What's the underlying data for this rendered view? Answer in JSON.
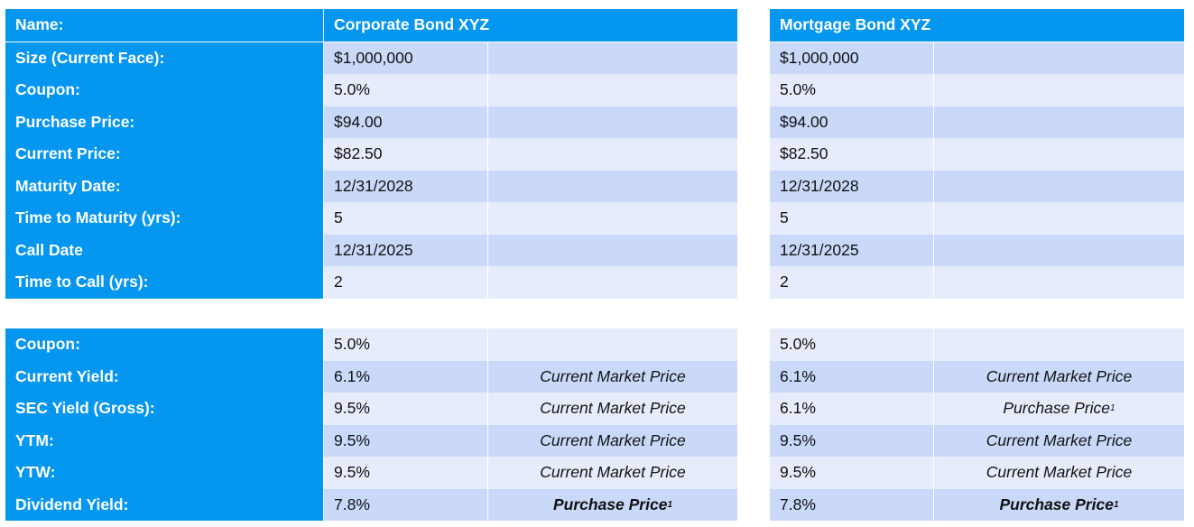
{
  "top_table": {
    "header": {
      "label": "Name:",
      "corporate": "Corporate Bond XYZ",
      "mortgage": "Mortgage Bond XYZ"
    },
    "rows": [
      {
        "label": "Size (Current Face):",
        "corporate": "$1,000,000",
        "mortgage": "$1,000,000"
      },
      {
        "label": "Coupon:",
        "corporate": "5.0%",
        "mortgage": "5.0%"
      },
      {
        "label": "Purchase Price:",
        "corporate": "$94.00",
        "mortgage": "$94.00"
      },
      {
        "label": "Current Price:",
        "corporate": "$82.50",
        "mortgage": "$82.50"
      },
      {
        "label": "Maturity Date:",
        "corporate": "12/31/2028",
        "mortgage": "12/31/2028"
      },
      {
        "label": "Time to Maturity (yrs):",
        "corporate": "5",
        "mortgage": "5"
      },
      {
        "label": "Call Date",
        "corporate": "12/31/2025",
        "mortgage": "12/31/2025"
      },
      {
        "label": "Time to Call (yrs):",
        "corporate": "2",
        "mortgage": "2"
      }
    ]
  },
  "bottom_table": {
    "footnote_marker": "1",
    "rows": [
      {
        "label": "Coupon:",
        "corporate": "5.0%",
        "corporate_basis": "",
        "mortgage": "5.0%",
        "mortgage_basis": ""
      },
      {
        "label": "Current Yield:",
        "corporate": "6.1%",
        "corporate_basis": "Current Market Price",
        "mortgage": "6.1%",
        "mortgage_basis": "Current Market Price"
      },
      {
        "label": "SEC Yield (Gross):",
        "corporate": "9.5%",
        "corporate_basis": "Current Market Price",
        "mortgage": "6.1%",
        "mortgage_basis": "Purchase Price"
      },
      {
        "label": "YTM:",
        "corporate": "9.5%",
        "corporate_basis": "Current Market Price",
        "mortgage": "9.5%",
        "mortgage_basis": "Current Market Price"
      },
      {
        "label": "YTW:",
        "corporate": "9.5%",
        "corporate_basis": "Current Market Price",
        "mortgage": "9.5%",
        "mortgage_basis": "Current Market Price"
      },
      {
        "label": "Dividend Yield:",
        "corporate": "7.8%",
        "corporate_basis": "Purchase Price",
        "mortgage": "7.8%",
        "mortgage_basis": "Purchase Price"
      }
    ]
  }
}
